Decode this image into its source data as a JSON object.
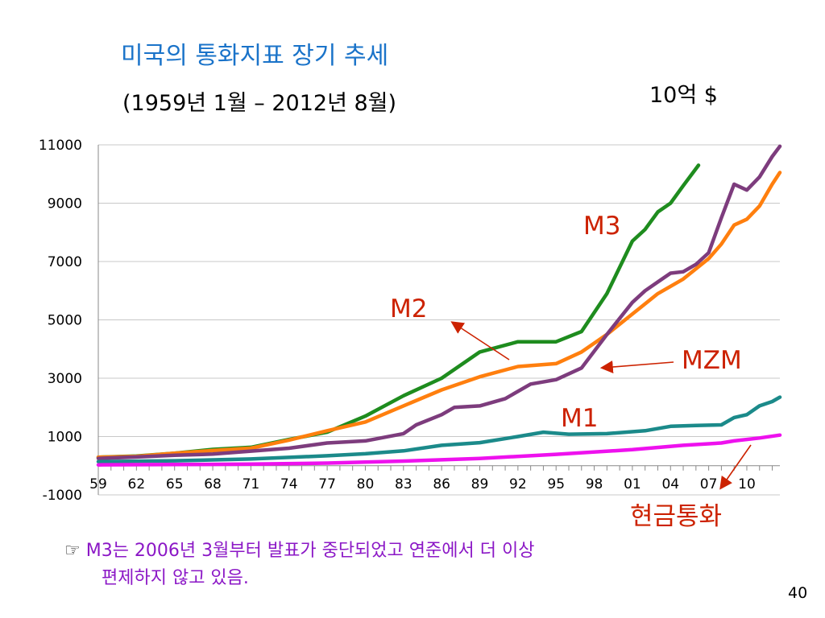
{
  "slide": {
    "title": "미국의 통화지표 장기 추세",
    "subtitle": "(1959년 1월  – 2012년 8월)",
    "unit": "10억 $",
    "note_bullet": "☞ ",
    "note_line1": "M3는 2006년 3월부터 발표가 중단되었고 연준에서 더 이상",
    "note_line2": "편제하지 않고 있음.",
    "page_number": "40"
  },
  "chart_data": {
    "type": "line",
    "ylim": [
      -1000,
      11000
    ],
    "xlim": [
      1959,
      2012.6
    ],
    "y_ticks": [
      -1000,
      1000,
      3000,
      5000,
      7000,
      9000,
      11000
    ],
    "x_tick_labels": [
      "59",
      "62",
      "65",
      "68",
      "71",
      "74",
      "77",
      "80",
      "83",
      "86",
      "89",
      "92",
      "95",
      "98",
      "01",
      "04",
      "07",
      "10"
    ],
    "grid": true,
    "series": [
      {
        "name": "M3",
        "color": "#1e8c1e",
        "x": [
          1959,
          1962,
          1965,
          1968,
          1971,
          1974,
          1977,
          1980,
          1983,
          1986,
          1989,
          1992,
          1995,
          1997,
          1999,
          2001,
          2002,
          2003,
          2004,
          2005,
          2006.2
        ],
        "y": [
          290,
          330,
          430,
          560,
          630,
          900,
          1150,
          1700,
          2400,
          3000,
          3900,
          4250,
          4250,
          4600,
          5900,
          7700,
          8100,
          8700,
          9000,
          9600,
          10300
        ]
      },
      {
        "name": "M2",
        "color": "#ff7f0e",
        "x": [
          1959,
          1962,
          1965,
          1968,
          1971,
          1974,
          1977,
          1980,
          1983,
          1986,
          1989,
          1992,
          1995,
          1997,
          1999,
          2001,
          2003,
          2005,
          2007,
          2008,
          2009,
          2010,
          2011,
          2012,
          2012.6
        ],
        "y": [
          290,
          320,
          430,
          520,
          600,
          880,
          1200,
          1500,
          2050,
          2600,
          3050,
          3400,
          3500,
          3900,
          4500,
          5200,
          5900,
          6400,
          7100,
          7600,
          8250,
          8450,
          8900,
          9650,
          10050
        ]
      },
      {
        "name": "MZM",
        "color": "#7d3c7d",
        "x": [
          1959,
          1962,
          1965,
          1968,
          1971,
          1974,
          1977,
          1980,
          1983,
          1984,
          1986,
          1987,
          1989,
          1991,
          1993,
          1995,
          1997,
          1999,
          2001,
          2002,
          2003,
          2004,
          2005,
          2006,
          2007,
          2008,
          2009,
          2010,
          2011,
          2012,
          2012.6
        ],
        "y": [
          250,
          300,
          360,
          400,
          500,
          600,
          780,
          850,
          1100,
          1400,
          1750,
          2000,
          2050,
          2300,
          2800,
          2950,
          3350,
          4500,
          5600,
          6000,
          6300,
          6600,
          6650,
          6900,
          7300,
          8500,
          9650,
          9450,
          9900,
          10600,
          10950
        ]
      },
      {
        "name": "M1",
        "color": "#1b8a8a",
        "x": [
          1959,
          1965,
          1971,
          1977,
          1980,
          1983,
          1986,
          1989,
          1992,
          1994,
          1996,
          1999,
          2002,
          2004,
          2006,
          2008,
          2009,
          2010,
          2011,
          2012,
          2012.6
        ],
        "y": [
          140,
          170,
          230,
          340,
          410,
          510,
          700,
          790,
          1000,
          1150,
          1080,
          1100,
          1200,
          1350,
          1380,
          1400,
          1650,
          1750,
          2050,
          2200,
          2350
        ]
      },
      {
        "name": "현금통화",
        "color": "#ee11ee",
        "x": [
          1959,
          1965,
          1971,
          1977,
          1983,
          1989,
          1995,
          2001,
          2005,
          2008,
          2009,
          2011,
          2012.6
        ],
        "y": [
          30,
          40,
          55,
          90,
          160,
          250,
          390,
          550,
          700,
          780,
          850,
          950,
          1050
        ]
      }
    ],
    "labels": [
      {
        "text": "M3",
        "color": "#cc2200"
      },
      {
        "text": "M2",
        "color": "#cc2200"
      },
      {
        "text": "MZM",
        "color": "#cc2200"
      },
      {
        "text": "M1",
        "color": "#cc2200"
      },
      {
        "text": "현금통화",
        "color": "#cc2200"
      }
    ]
  }
}
